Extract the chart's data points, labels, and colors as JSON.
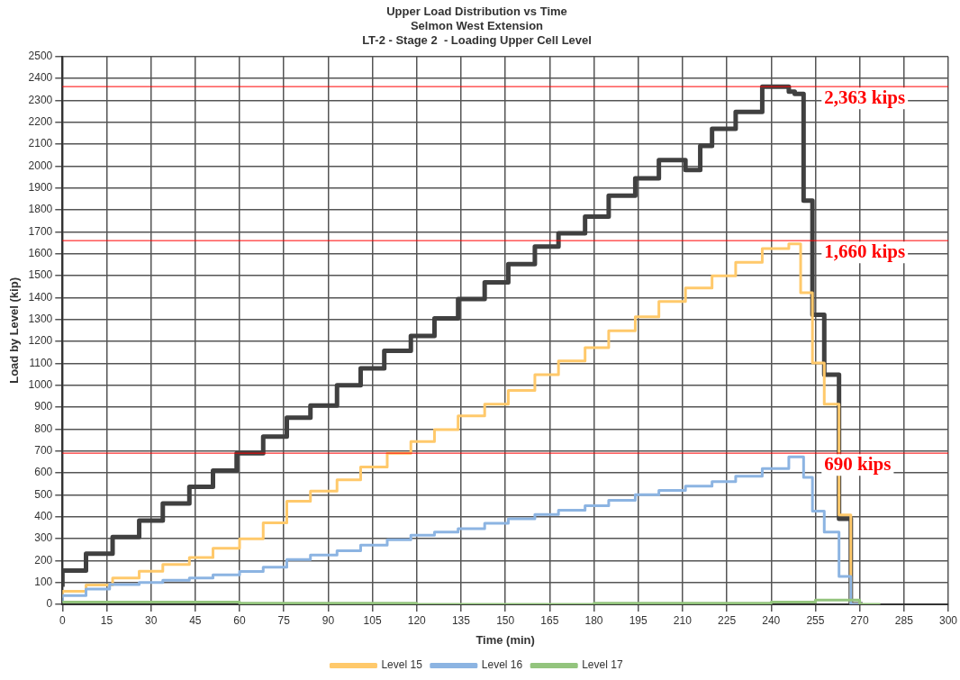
{
  "chart_data": {
    "type": "step",
    "title": "Upper Load Distribution vs Time",
    "subtitle": "Selmon West Extension\nLT-2 - Stage 2  - Loading Upper Cell Level",
    "xlabel": "Time (min)",
    "ylabel": "Load by Level (kip)",
    "xlim": [
      0,
      300
    ],
    "xticks": [
      0,
      15,
      30,
      45,
      60,
      75,
      90,
      105,
      120,
      135,
      150,
      165,
      180,
      195,
      210,
      225,
      240,
      255,
      270,
      285,
      300
    ],
    "ylim": [
      0,
      2500
    ],
    "yticks": [
      0,
      100,
      200,
      300,
      400,
      500,
      600,
      700,
      800,
      900,
      1000,
      1100,
      1200,
      1300,
      1400,
      1500,
      1600,
      1700,
      1800,
      1900,
      2000,
      2100,
      2200,
      2300,
      2400,
      2500
    ],
    "grid": true,
    "legend": "bottom",
    "marker": "none",
    "series": [
      {
        "color": "#404040",
        "x": [
          0,
          8,
          17,
          26,
          34,
          43,
          51,
          59,
          68,
          76,
          84,
          93,
          101,
          109,
          118,
          126,
          134,
          143,
          151,
          160,
          168,
          177,
          185,
          194,
          202,
          211,
          216,
          220,
          228,
          237,
          246,
          248,
          251,
          254,
          258,
          263,
          267,
          271
        ],
        "values": [
          80,
          154,
          231,
          307,
          382,
          460,
          536,
          610,
          690,
          766,
          852,
          907,
          1000,
          1077,
          1157,
          1225,
          1305,
          1393,
          1469,
          1553,
          1633,
          1694,
          1770,
          1865,
          1944,
          2028,
          1982,
          2092,
          2170,
          2247,
          2363,
          2340,
          2330,
          1843,
          1322,
          1048,
          391,
          0
        ]
      },
      {
        "name": "Level 15",
        "color": "#ffc96b",
        "x": [
          0,
          8,
          17,
          26,
          34,
          43,
          51,
          60,
          68,
          76,
          84,
          93,
          101,
          110,
          118,
          126,
          134,
          143,
          151,
          160,
          168,
          177,
          185,
          194,
          202,
          211,
          220,
          228,
          237,
          246,
          250,
          254,
          258,
          263,
          267,
          271
        ],
        "values": [
          30,
          60,
          88,
          120,
          151,
          182,
          214,
          256,
          299,
          372,
          471,
          517,
          568,
          627,
          690,
          743,
          797,
          860,
          914,
          976,
          1048,
          1111,
          1172,
          1249,
          1312,
          1382,
          1444,
          1499,
          1561,
          1624,
          1645,
          1422,
          1102,
          914,
          408,
          0
        ]
      },
      {
        "name": "Level 16",
        "color": "#8cb4e2",
        "x": [
          0,
          8,
          16,
          26,
          34,
          43,
          51,
          60,
          68,
          76,
          84,
          93,
          101,
          110,
          118,
          126,
          134,
          143,
          151,
          160,
          168,
          177,
          185,
          194,
          202,
          211,
          220,
          228,
          237,
          246,
          251,
          254,
          258,
          263,
          267,
          271
        ],
        "values": [
          10,
          40,
          70,
          90,
          100,
          110,
          120,
          135,
          150,
          170,
          205,
          225,
          245,
          270,
          295,
          315,
          330,
          345,
          370,
          390,
          410,
          430,
          450,
          475,
          500,
          520,
          540,
          560,
          585,
          620,
          673,
          580,
          425,
          330,
          127,
          0
        ]
      },
      {
        "name": "Level 17",
        "color": "#93c47d",
        "x": [
          0,
          60,
          120,
          180,
          240,
          255,
          270,
          277
        ],
        "values": [
          5,
          10,
          5,
          0,
          5,
          10,
          20,
          0
        ]
      }
    ],
    "ref_lines": [
      {
        "axis": "y",
        "value": 2363,
        "label": "2,363 kips",
        "color": "#ff0000"
      },
      {
        "axis": "y",
        "value": 1660,
        "label": "1,660 kips",
        "color": "#ff0000"
      },
      {
        "axis": "y",
        "value": 690,
        "label": "690 kips",
        "color": "#ff0000"
      }
    ]
  }
}
